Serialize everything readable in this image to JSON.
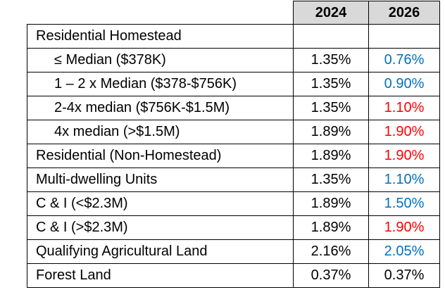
{
  "table": {
    "columns": [
      "2024",
      "2026"
    ],
    "rows": [
      {
        "label": "Residential Homestead"
      },
      {
        "label": "≤ Median ($378K)",
        "indent": true,
        "values": [
          "1.35%",
          "0.76%"
        ],
        "colors": [
          "#000000",
          "#0070c0"
        ]
      },
      {
        "label": "1 – 2 x Median ($378-$756K)",
        "indent": true,
        "values": [
          "1.35%",
          "0.90%"
        ],
        "colors": [
          "#000000",
          "#0070c0"
        ]
      },
      {
        "label": "2-4x median ($756K-$1.5M)",
        "indent": true,
        "values": [
          "1.35%",
          "1.10%"
        ],
        "colors": [
          "#000000",
          "#ff0000"
        ]
      },
      {
        "label": "4x median (>$1.5M)",
        "indent": true,
        "values": [
          "1.89%",
          "1.90%"
        ],
        "colors": [
          "#000000",
          "#ff0000"
        ]
      },
      {
        "label": "Residential (Non-Homestead)",
        "values": [
          "1.89%",
          "1.90%"
        ],
        "colors": [
          "#000000",
          "#ff0000"
        ]
      },
      {
        "label": "Multi-dwelling Units",
        "values": [
          "1.35%",
          "1.10%"
        ],
        "colors": [
          "#000000",
          "#0070c0"
        ]
      },
      {
        "label": "C & I (<$2.3M)",
        "values": [
          "1.89%",
          "1.50%"
        ],
        "colors": [
          "#000000",
          "#0070c0"
        ]
      },
      {
        "label": "C & I (>$2.3M)",
        "values": [
          "1.89%",
          "1.90%"
        ],
        "colors": [
          "#000000",
          "#ff0000"
        ]
      },
      {
        "label": "Qualifying Agricultural Land",
        "values": [
          "2.16%",
          "2.05%"
        ],
        "colors": [
          "#000000",
          "#0070c0"
        ]
      },
      {
        "label": "Forest Land",
        "values": [
          "0.37%",
          "0.37%"
        ],
        "colors": [
          "#000000",
          "#000000"
        ]
      }
    ]
  }
}
